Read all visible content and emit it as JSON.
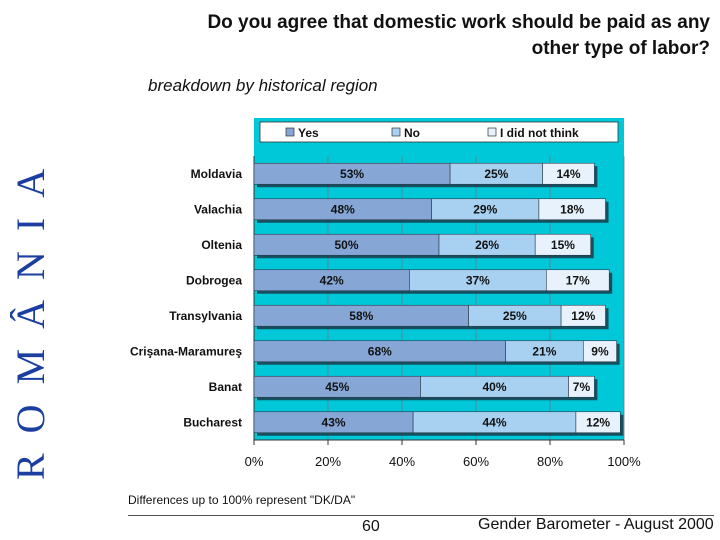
{
  "side_word": "ROMÂNIA",
  "title_line1": "Do you agree that domestic work should be paid as any",
  "title_line2": "other type of labor?",
  "subtitle": "breakdown by historical region",
  "footnote": "Differences up to 100% represent \"DK/DA\"",
  "page_number": "60",
  "source": "Gender Barometer - August 2000",
  "colors": {
    "yes": "#86a6d6",
    "no": "#a8d0f0",
    "dnt": "#e8f2fc",
    "plot_bg": "#00c8d8",
    "side": "#1a3fa0"
  },
  "chart_data": {
    "type": "bar",
    "orientation": "horizontal",
    "stacked": true,
    "categories": [
      "Moldavia",
      "Valachia",
      "Oltenia",
      "Dobrogea",
      "Transylvania",
      "Crişana-Maramureş",
      "Banat",
      "Bucharest"
    ],
    "series": [
      {
        "name": "Yes",
        "values": [
          53,
          48,
          50,
          42,
          58,
          68,
          45,
          43
        ],
        "labels": [
          "53%",
          "48%",
          "50%",
          "42%",
          "58%",
          "68%",
          "45%",
          "43%"
        ]
      },
      {
        "name": "No",
        "values": [
          25,
          29,
          26,
          37,
          25,
          21,
          40,
          44
        ],
        "labels": [
          "25%",
          "29%",
          "26%",
          "37%",
          "25%",
          "21%",
          "40%",
          "44%"
        ]
      },
      {
        "name": "I did not think",
        "values": [
          14,
          18,
          15,
          17,
          12,
          9,
          7,
          12
        ],
        "labels": [
          "14%",
          "18%",
          "15%",
          "17%",
          "12%",
          "9%",
          "7%",
          "12%"
        ]
      }
    ],
    "xticks": [
      "0%",
      "20%",
      "40%",
      "60%",
      "80%",
      "100%"
    ],
    "xlim": [
      0,
      100
    ],
    "legend": "top",
    "grid": true
  }
}
